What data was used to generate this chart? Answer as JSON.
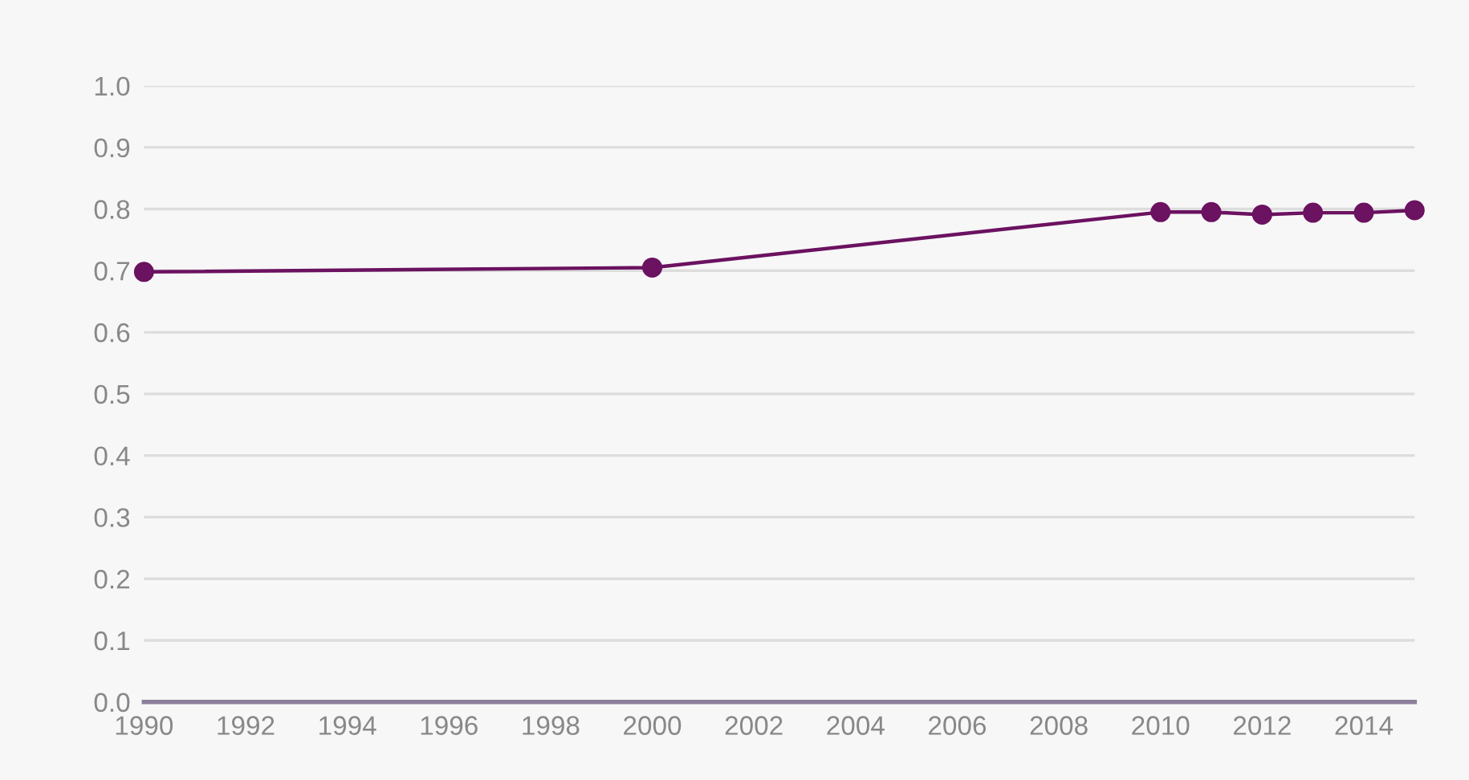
{
  "chart_data": {
    "type": "line",
    "x": [
      1990,
      2000,
      2010,
      2011,
      2012,
      2013,
      2014,
      2015
    ],
    "series": [
      {
        "color": "#6b1260",
        "values": [
          0.698,
          0.705,
          0.795,
          0.795,
          0.791,
          0.794,
          0.794,
          0.798
        ]
      }
    ],
    "xlim": [
      1990,
      2015
    ],
    "xticks": [
      1990,
      1992,
      1994,
      1996,
      1998,
      2000,
      2002,
      2004,
      2006,
      2008,
      2010,
      2012,
      2014
    ],
    "ylim": [
      0,
      1
    ],
    "yticks": [
      {
        "value": 0,
        "label": "0.0"
      },
      0.1,
      0.2,
      0.3,
      0.4,
      0.5,
      0.6,
      0.7,
      0.8,
      0.9,
      {
        "value": 1,
        "label": "1.0"
      }
    ],
    "grid": "y",
    "marker": "circle",
    "line_style": "solid"
  }
}
